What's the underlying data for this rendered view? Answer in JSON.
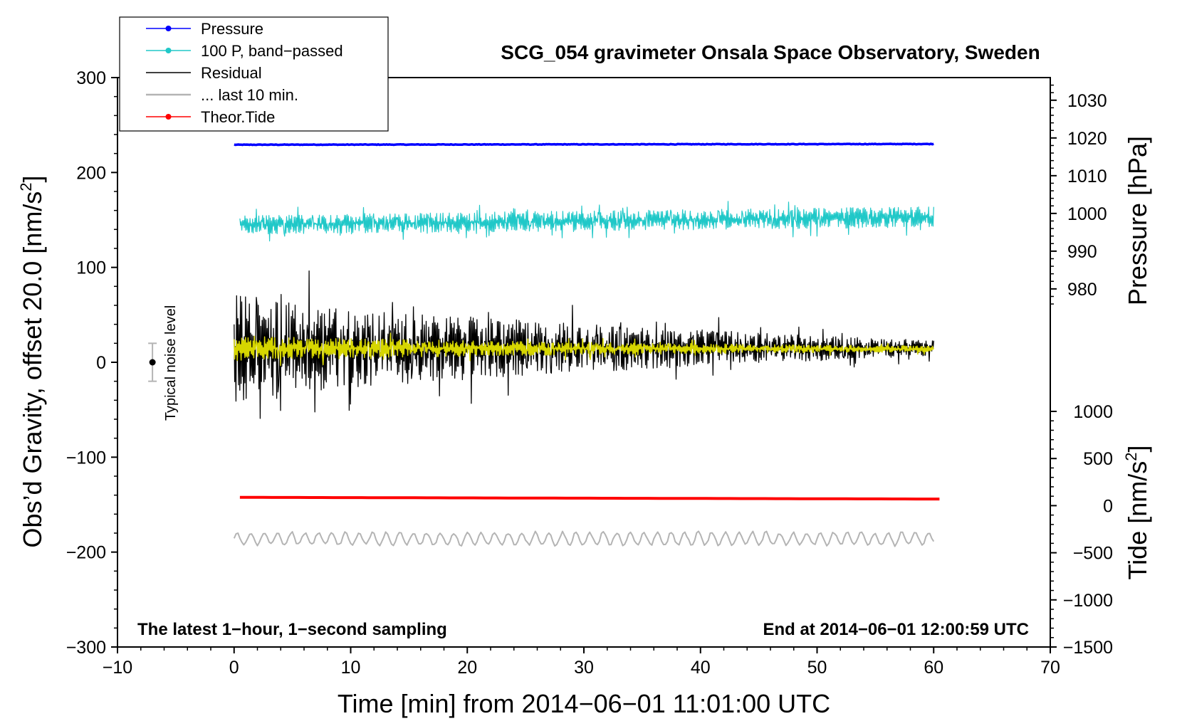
{
  "chart_data": {
    "type": "line",
    "title": "SCG_054 gravimeter Onsala Space Observatory, Sweden",
    "xlabel": "Time [min] from 2014−06−01 11:01:00 UTC",
    "ylabel": "Obs’d Gravity, offset 20.0 [nm/s",
    "ylabel_sup": "2",
    "ylabel_end": "]",
    "y2label": "Pressure [hPa]",
    "y3label": "Tide [nm/s",
    "y3label_sup": "2",
    "y3label_end": "]",
    "footer_left": "The latest 1−hour, 1−second sampling",
    "footer_right": "End at 2014−06−01 12:00:59 UTC",
    "noise_label": "Typical noise level",
    "xlim": [
      -10,
      70
    ],
    "ylim": [
      -300,
      300
    ],
    "pressure_lim": [
      963,
      1036
    ],
    "tide_lim": [
      -1500,
      1000
    ],
    "x_ticks": [
      -10,
      0,
      10,
      20,
      30,
      40,
      50,
      60,
      70
    ],
    "x_tick_labels": [
      "−10",
      "0",
      "10",
      "20",
      "30",
      "40",
      "50",
      "60",
      "70"
    ],
    "y_ticks": [
      -300,
      -200,
      -100,
      0,
      100,
      200,
      300
    ],
    "y_tick_labels": [
      "−300",
      "−200",
      "−100",
      "0",
      "100",
      "200",
      "300"
    ],
    "pressure_ticks": [
      980,
      990,
      1000,
      1010,
      1020,
      1030
    ],
    "pressure_tick_labels": [
      "980",
      "990",
      "1000",
      "1010",
      "1020",
      "1030"
    ],
    "tide_ticks": [
      -1500,
      -1000,
      -500,
      0,
      500,
      1000
    ],
    "tide_tick_labels": [
      "−1500",
      "−1000",
      "−500",
      "0",
      "500",
      "1000"
    ],
    "noise_bar": {
      "x": -7,
      "center": 0,
      "half_range": 20
    },
    "legend": [
      {
        "label": "Pressure",
        "color": "#0000ff",
        "marker": true
      },
      {
        "label": "100 P, band−passed",
        "color": "#20c8c8",
        "marker": true
      },
      {
        "label": "Residual",
        "color": "#000000",
        "marker": false
      },
      {
        "label": "... last 10 min.",
        "color": "#b4b4b4",
        "marker": false
      },
      {
        "label": "Theor.Tide",
        "color": "#ff0000",
        "marker": true
      }
    ],
    "series": [
      {
        "name": "Pressure",
        "color": "#0000ff",
        "axis": "pressure",
        "x_range": [
          0,
          60
        ],
        "start": 1018.2,
        "end": 1018.4,
        "noise": 0.15,
        "width": 3.5
      },
      {
        "name": "100 P, band−passed",
        "color": "#20c8c8",
        "axis": "gravity",
        "x_range": [
          0.5,
          60
        ],
        "start": 145,
        "end": 153,
        "envelope_start": 10,
        "envelope_end": 11,
        "width": 1.2
      },
      {
        "name": "Residual",
        "color": "#000000",
        "axis": "gravity",
        "x_range": [
          0,
          60
        ],
        "start": 15,
        "end": 15,
        "envelope_start": 60,
        "envelope_end": 8,
        "width": 1.3
      },
      {
        "name": "Residual (filtered)",
        "color": "#d6d600",
        "axis": "gravity",
        "x_range": [
          0,
          60
        ],
        "start": 15,
        "end": 14,
        "envelope_start": 14,
        "envelope_end": 3,
        "width": 1.5
      },
      {
        "name": "... last 10 min.",
        "color": "#b4b4b4",
        "axis": "gravity",
        "x_range": [
          0,
          60
        ],
        "start": -186,
        "end": -186,
        "envelope_start": 8,
        "envelope_end": 8,
        "width": 2
      },
      {
        "name": "Theor.Tide",
        "color": "#ff0000",
        "axis": "tide",
        "x_range": [
          0.5,
          60.5
        ],
        "start": 88,
        "end": 70,
        "width": 4
      }
    ]
  }
}
